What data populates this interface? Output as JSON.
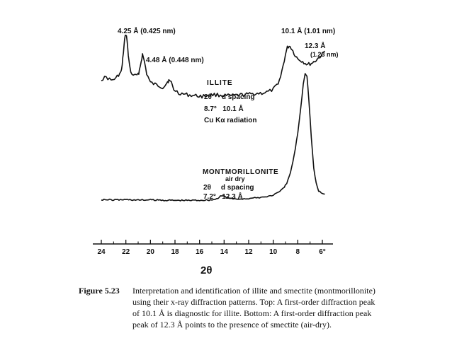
{
  "chart_data": {
    "type": "line",
    "xlabel": "2θ",
    "xlim": [
      24.5,
      5.5
    ],
    "x_reversed": true,
    "xticks": [
      "24",
      "22",
      "20",
      "18",
      "16",
      "14",
      "12",
      "10",
      "8",
      "6°"
    ],
    "xtick_values": [
      24,
      22,
      20,
      18,
      16,
      14,
      12,
      10,
      8,
      6
    ],
    "series": [
      {
        "name": "ILLITE",
        "info": {
          "header": "2θ     d spacing",
          "row": "8.7°   10.1 Å",
          "radiation": "Cu Kα radiation"
        },
        "points": [
          [
            24.0,
            0.58
          ],
          [
            23.6,
            0.6
          ],
          [
            23.2,
            0.57
          ],
          [
            22.8,
            0.59
          ],
          [
            22.6,
            0.62
          ],
          [
            22.4,
            0.64
          ],
          [
            22.3,
            0.7
          ],
          [
            22.2,
            0.82
          ],
          [
            22.1,
            0.93
          ],
          [
            22.0,
            0.98
          ],
          [
            21.9,
            0.93
          ],
          [
            21.8,
            0.78
          ],
          [
            21.6,
            0.64
          ],
          [
            21.3,
            0.61
          ],
          [
            21.0,
            0.62
          ],
          [
            20.9,
            0.66
          ],
          [
            20.75,
            0.74
          ],
          [
            20.65,
            0.8
          ],
          [
            20.5,
            0.74
          ],
          [
            20.3,
            0.63
          ],
          [
            20.0,
            0.55
          ],
          [
            19.5,
            0.53
          ],
          [
            19.0,
            0.51
          ],
          [
            18.8,
            0.53
          ],
          [
            18.6,
            0.56
          ],
          [
            18.5,
            0.57
          ],
          [
            18.3,
            0.55
          ],
          [
            18.1,
            0.49
          ],
          [
            17.7,
            0.46
          ],
          [
            17.3,
            0.45
          ],
          [
            16.8,
            0.44
          ],
          [
            16.3,
            0.435
          ],
          [
            15.8,
            0.43
          ],
          [
            15.3,
            0.44
          ],
          [
            14.8,
            0.445
          ],
          [
            14.3,
            0.44
          ],
          [
            13.8,
            0.435
          ],
          [
            13.3,
            0.435
          ],
          [
            12.8,
            0.44
          ],
          [
            12.3,
            0.445
          ],
          [
            11.8,
            0.45
          ],
          [
            11.3,
            0.455
          ],
          [
            10.8,
            0.46
          ],
          [
            10.4,
            0.47
          ],
          [
            10.0,
            0.49
          ],
          [
            9.7,
            0.53
          ],
          [
            9.4,
            0.6
          ],
          [
            9.2,
            0.7
          ],
          [
            9.0,
            0.8
          ],
          [
            8.85,
            0.86
          ],
          [
            8.7,
            0.875
          ],
          [
            8.55,
            0.86
          ],
          [
            8.4,
            0.83
          ],
          [
            8.2,
            0.79
          ],
          [
            8.0,
            0.76
          ],
          [
            7.8,
            0.75
          ],
          [
            7.5,
            0.73
          ],
          [
            7.2,
            0.71
          ],
          [
            6.9,
            0.72
          ],
          [
            6.6,
            0.74
          ],
          [
            6.3,
            0.77
          ],
          [
            6.0,
            0.8
          ],
          [
            5.8,
            0.83
          ]
        ]
      },
      {
        "name": "MONTMORILLONITE",
        "subtitle": "air dry",
        "info": {
          "header": "2θ     d spacing",
          "row": "7.2°   12.3 Å"
        },
        "points": [
          [
            24.0,
            0.045
          ],
          [
            23.0,
            0.043
          ],
          [
            22.0,
            0.045
          ],
          [
            21.0,
            0.042
          ],
          [
            20.0,
            0.043
          ],
          [
            19.0,
            0.041
          ],
          [
            18.0,
            0.04
          ],
          [
            17.0,
            0.04
          ],
          [
            16.0,
            0.041
          ],
          [
            15.0,
            0.043
          ],
          [
            14.6,
            0.05
          ],
          [
            14.3,
            0.065
          ],
          [
            14.1,
            0.07
          ],
          [
            13.8,
            0.06
          ],
          [
            13.4,
            0.05
          ],
          [
            13.0,
            0.048
          ],
          [
            12.5,
            0.05
          ],
          [
            12.0,
            0.052
          ],
          [
            11.5,
            0.055
          ],
          [
            11.0,
            0.06
          ],
          [
            10.5,
            0.065
          ],
          [
            10.0,
            0.075
          ],
          [
            9.6,
            0.09
          ],
          [
            9.2,
            0.115
          ],
          [
            8.9,
            0.15
          ],
          [
            8.6,
            0.22
          ],
          [
            8.3,
            0.33
          ],
          [
            8.0,
            0.48
          ],
          [
            7.75,
            0.65
          ],
          [
            7.55,
            0.8
          ],
          [
            7.4,
            0.87
          ],
          [
            7.25,
            0.85
          ],
          [
            7.1,
            0.7
          ],
          [
            6.9,
            0.45
          ],
          [
            6.7,
            0.25
          ],
          [
            6.5,
            0.15
          ],
          [
            6.3,
            0.1
          ],
          [
            6.0,
            0.085
          ],
          [
            5.8,
            0.08
          ]
        ]
      }
    ],
    "annotations": [
      {
        "text": "4.25 Å  (0.425 nm)",
        "x": 22.0
      },
      {
        "text": "4.48 Å  (0.448 nm)",
        "x": 20.65
      },
      {
        "text": "10.1 Å  (1.01 nm)",
        "x": 8.7
      },
      {
        "text": "12.3 Å",
        "x": 7.4
      },
      {
        "text": "(1.23 nm)",
        "x": 7.4
      }
    ]
  },
  "caption": {
    "label": "Figure 5.23",
    "lines": [
      "Interpretation and identification of illite and smectite (montmorillonite)",
      "using their x-ray diffraction patterns. Top: A first-order diffraction peak",
      "of 10.1 Å is diagnostic for illite. Bottom: A first-order diffraction peak",
      "peak of 12.3 Å points to the presence of smectite (air-dry)."
    ]
  }
}
